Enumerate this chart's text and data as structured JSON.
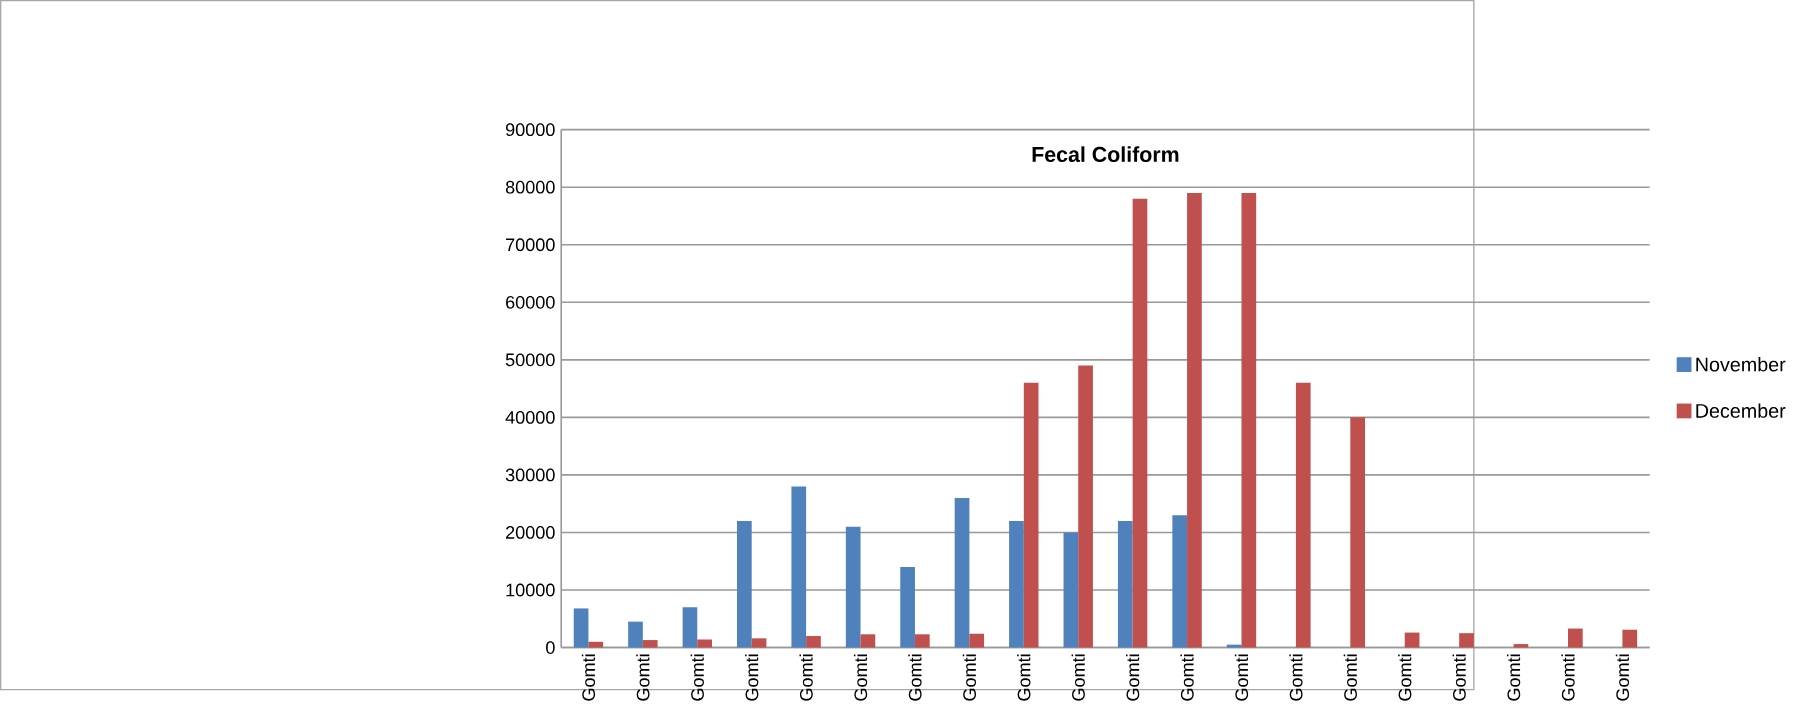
{
  "chart_data": {
    "type": "bar",
    "title": "Fecal Coliform",
    "categories": [
      "Gomti",
      "Gomti",
      "Gomti",
      "Gomti",
      "Gomti",
      "Gomti",
      "Gomti",
      "Gomti",
      "Gomti",
      "Gomti",
      "Gomti",
      "Gomti",
      "Gomti",
      "Gomti",
      "Gomti",
      "Gomti",
      "Gomti",
      "Gomti",
      "Gomti",
      "Gomti"
    ],
    "series": [
      {
        "name": "November",
        "color": "#4f81bd",
        "values": [
          6800,
          4500,
          7000,
          22000,
          28000,
          21000,
          14000,
          26000,
          22000,
          20000,
          22000,
          23000,
          500,
          null,
          null,
          null,
          null,
          null,
          null,
          null
        ]
      },
      {
        "name": "December",
        "color": "#c0504d",
        "values": [
          1000,
          1300,
          1400,
          1600,
          2000,
          2300,
          2300,
          2400,
          46000,
          49000,
          78000,
          79000,
          79000,
          46000,
          40000,
          2600,
          2500,
          600,
          3300,
          3100
        ]
      }
    ],
    "ylim": [
      0,
      90000
    ],
    "yticks": [
      0,
      10000,
      20000,
      30000,
      40000,
      50000,
      60000,
      70000,
      80000,
      90000
    ],
    "grid": "y",
    "legend": "right"
  }
}
